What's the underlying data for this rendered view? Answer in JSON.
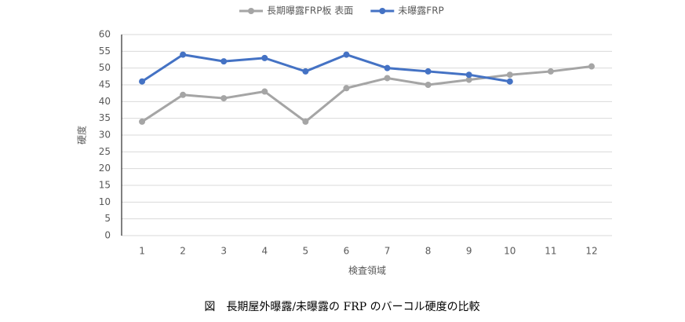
{
  "chart_data": {
    "type": "line",
    "x_label": "検査領域",
    "y_label": "硬度",
    "caption": "図　長期屋外曝露/未曝露の FRP のバーコル硬度の比較",
    "categories": [
      "1",
      "2",
      "3",
      "4",
      "5",
      "6",
      "7",
      "8",
      "9",
      "10",
      "11",
      "12"
    ],
    "series": [
      {
        "name": "長期曝露FRP板 表面",
        "color": "#a5a5a5",
        "values": [
          34,
          42,
          41,
          43,
          34,
          44,
          47,
          45,
          46.5,
          48,
          49,
          50.5
        ]
      },
      {
        "name": "未曝露FRP",
        "color": "#4472c4",
        "values": [
          46,
          54,
          52,
          53,
          49,
          54,
          50,
          49,
          48,
          46,
          null,
          null
        ]
      }
    ],
    "ylim": [
      0,
      60
    ],
    "yticks": [
      0,
      5,
      10,
      15,
      20,
      25,
      30,
      35,
      40,
      45,
      50,
      55,
      60
    ],
    "grid": true,
    "legend": "top"
  }
}
